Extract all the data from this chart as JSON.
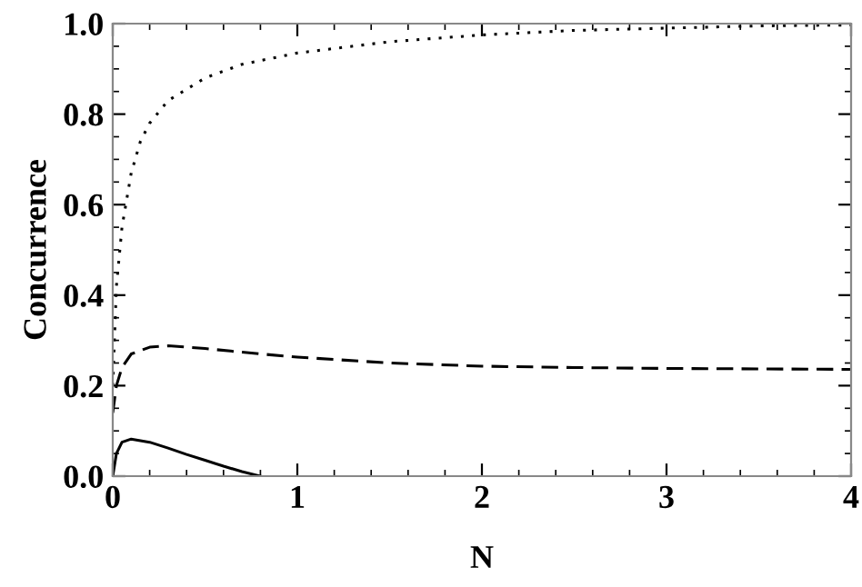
{
  "chart_data": {
    "type": "line",
    "xlabel": "N",
    "ylabel": "Concurrence",
    "xlim": [
      0,
      4
    ],
    "ylim": [
      0,
      1
    ],
    "xticks": [
      0,
      1,
      2,
      3,
      4
    ],
    "yticks": [
      {
        "value": 0,
        "label": "0.0"
      },
      {
        "value": 0.2,
        "label": "0.2"
      },
      {
        "value": 0.4,
        "label": "0.4"
      },
      {
        "value": 0.6,
        "label": "0.6"
      },
      {
        "value": 0.8,
        "label": "0.8"
      },
      {
        "value": 1,
        "label": "1.0"
      }
    ],
    "grid": false,
    "legend": false,
    "marker": "none",
    "series": [
      {
        "color": "#000000",
        "line_style": "solid",
        "x": [
          0,
          0.02,
          0.05,
          0.1,
          0.2,
          0.3,
          0.4,
          0.5,
          0.6,
          0.7,
          0.8
        ],
        "values": [
          0,
          0.05,
          0.075,
          0.082,
          0.075,
          0.062,
          0.048,
          0.035,
          0.022,
          0.01,
          0
        ]
      },
      {
        "color": "#000000",
        "line_style": "dashed",
        "x": [
          0,
          0.02,
          0.05,
          0.1,
          0.2,
          0.3,
          0.5,
          0.8,
          1,
          1.5,
          2,
          2.5,
          3,
          3.5,
          4
        ],
        "values": [
          0.14,
          0.2,
          0.24,
          0.27,
          0.285,
          0.288,
          0.282,
          0.27,
          0.263,
          0.25,
          0.243,
          0.24,
          0.238,
          0.237,
          0.236
        ]
      },
      {
        "color": "#000000",
        "line_style": "dotted",
        "x": [
          0,
          0.02,
          0.05,
          0.1,
          0.15,
          0.2,
          0.3,
          0.5,
          0.7,
          1,
          1.5,
          2,
          2.5,
          3,
          3.5,
          4
        ],
        "values": [
          0.2,
          0.42,
          0.55,
          0.67,
          0.74,
          0.78,
          0.83,
          0.88,
          0.91,
          0.935,
          0.96,
          0.975,
          0.985,
          0.99,
          0.995,
          0.997
        ]
      }
    ]
  }
}
